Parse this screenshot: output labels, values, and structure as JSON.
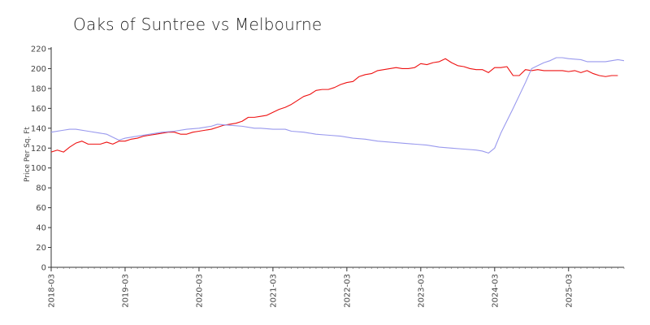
{
  "chart_data": {
    "type": "line",
    "title": "Oaks of Suntree vs Melbourne",
    "xlabel": "",
    "ylabel": "Price Per Sq. Ft",
    "ylim": [
      0,
      220
    ],
    "yticks": [
      0,
      20,
      40,
      60,
      80,
      100,
      120,
      140,
      160,
      180,
      200,
      220
    ],
    "xlim": [
      "2018-03",
      "2025-12"
    ],
    "xticks": [
      "2018-03",
      "2019-03",
      "2020-03",
      "2021-03",
      "2022-03",
      "2023-03",
      "2024-03",
      "2025-03"
    ],
    "grid": false,
    "legend": "none",
    "series": [
      {
        "color": "#ee1111",
        "points": [
          [
            "2018-03",
            116
          ],
          [
            "2018-04",
            118
          ],
          [
            "2018-05",
            116
          ],
          [
            "2018-06",
            121
          ],
          [
            "2018-07",
            125
          ],
          [
            "2018-08",
            127
          ],
          [
            "2018-09",
            124
          ],
          [
            "2018-10",
            124
          ],
          [
            "2018-11",
            124
          ],
          [
            "2018-12",
            126
          ],
          [
            "2019-01",
            124
          ],
          [
            "2019-02",
            127
          ],
          [
            "2019-03",
            127
          ],
          [
            "2019-04",
            129
          ],
          [
            "2019-05",
            130
          ],
          [
            "2019-06",
            132
          ],
          [
            "2019-07",
            133
          ],
          [
            "2019-08",
            134
          ],
          [
            "2019-09",
            135
          ],
          [
            "2019-10",
            136
          ],
          [
            "2019-11",
            136
          ],
          [
            "2019-12",
            134
          ],
          [
            "2020-01",
            134
          ],
          [
            "2020-02",
            136
          ],
          [
            "2020-03",
            137
          ],
          [
            "2020-04",
            138
          ],
          [
            "2020-05",
            139
          ],
          [
            "2020-06",
            141
          ],
          [
            "2020-07",
            143
          ],
          [
            "2020-08",
            144
          ],
          [
            "2020-09",
            145
          ],
          [
            "2020-10",
            147
          ],
          [
            "2020-11",
            151
          ],
          [
            "2020-12",
            151
          ],
          [
            "2021-01",
            152
          ],
          [
            "2021-02",
            153
          ],
          [
            "2021-03",
            156
          ],
          [
            "2021-04",
            159
          ],
          [
            "2021-05",
            161
          ],
          [
            "2021-06",
            164
          ],
          [
            "2021-07",
            168
          ],
          [
            "2021-08",
            172
          ],
          [
            "2021-09",
            174
          ],
          [
            "2021-10",
            178
          ],
          [
            "2021-11",
            179
          ],
          [
            "2021-12",
            179
          ],
          [
            "2022-01",
            181
          ],
          [
            "2022-02",
            184
          ],
          [
            "2022-03",
            186
          ],
          [
            "2022-04",
            187
          ],
          [
            "2022-05",
            192
          ],
          [
            "2022-06",
            194
          ],
          [
            "2022-07",
            195
          ],
          [
            "2022-08",
            198
          ],
          [
            "2022-09",
            199
          ],
          [
            "2022-10",
            200
          ],
          [
            "2022-11",
            201
          ],
          [
            "2022-12",
            200
          ],
          [
            "2023-01",
            200
          ],
          [
            "2023-02",
            201
          ],
          [
            "2023-03",
            205
          ],
          [
            "2023-04",
            204
          ],
          [
            "2023-05",
            206
          ],
          [
            "2023-06",
            207
          ],
          [
            "2023-07",
            210
          ],
          [
            "2023-08",
            206
          ],
          [
            "2023-09",
            203
          ],
          [
            "2023-10",
            202
          ],
          [
            "2023-11",
            200
          ],
          [
            "2023-12",
            199
          ],
          [
            "2024-01",
            199
          ],
          [
            "2024-02",
            196
          ],
          [
            "2024-03",
            201
          ],
          [
            "2024-04",
            201
          ],
          [
            "2024-05",
            202
          ],
          [
            "2024-06",
            193
          ],
          [
            "2024-07",
            193
          ],
          [
            "2024-08",
            199
          ],
          [
            "2024-09",
            198
          ],
          [
            "2024-10",
            199
          ],
          [
            "2024-11",
            198
          ],
          [
            "2024-12",
            198
          ],
          [
            "2025-01",
            198
          ],
          [
            "2025-02",
            198
          ],
          [
            "2025-03",
            197
          ],
          [
            "2025-04",
            198
          ],
          [
            "2025-05",
            196
          ],
          [
            "2025-06",
            198
          ],
          [
            "2025-07",
            195
          ],
          [
            "2025-08",
            193
          ],
          [
            "2025-09",
            192
          ],
          [
            "2025-10",
            193
          ],
          [
            "2025-11",
            193
          ]
        ]
      },
      {
        "color": "#9999ee",
        "points": [
          [
            "2018-03",
            136
          ],
          [
            "2018-05",
            138
          ],
          [
            "2018-06",
            139
          ],
          [
            "2018-07",
            139
          ],
          [
            "2018-09",
            137
          ],
          [
            "2018-11",
            135
          ],
          [
            "2018-12",
            134
          ],
          [
            "2019-01",
            131
          ],
          [
            "2019-02",
            128
          ],
          [
            "2019-03",
            130
          ],
          [
            "2019-05",
            132
          ],
          [
            "2019-07",
            134
          ],
          [
            "2019-09",
            136
          ],
          [
            "2019-11",
            137
          ],
          [
            "2020-01",
            139
          ],
          [
            "2020-03",
            140
          ],
          [
            "2020-05",
            142
          ],
          [
            "2020-06",
            144
          ],
          [
            "2020-08",
            143
          ],
          [
            "2020-10",
            142
          ],
          [
            "2020-12",
            140
          ],
          [
            "2021-01",
            140
          ],
          [
            "2021-03",
            139
          ],
          [
            "2021-05",
            139
          ],
          [
            "2021-06",
            137
          ],
          [
            "2021-08",
            136
          ],
          [
            "2021-10",
            134
          ],
          [
            "2021-12",
            133
          ],
          [
            "2022-02",
            132
          ],
          [
            "2022-04",
            130
          ],
          [
            "2022-06",
            129
          ],
          [
            "2022-08",
            127
          ],
          [
            "2022-10",
            126
          ],
          [
            "2022-12",
            125
          ],
          [
            "2023-02",
            124
          ],
          [
            "2023-04",
            123
          ],
          [
            "2023-06",
            121
          ],
          [
            "2023-08",
            120
          ],
          [
            "2023-10",
            119
          ],
          [
            "2023-12",
            118
          ],
          [
            "2024-01",
            117
          ],
          [
            "2024-02",
            115
          ],
          [
            "2024-03",
            120
          ],
          [
            "2024-04",
            135
          ],
          [
            "2024-06",
            160
          ],
          [
            "2024-08",
            186
          ],
          [
            "2024-09",
            200
          ],
          [
            "2024-10",
            203
          ],
          [
            "2024-11",
            206
          ],
          [
            "2024-12",
            208
          ],
          [
            "2025-01",
            211
          ],
          [
            "2025-02",
            211
          ],
          [
            "2025-03",
            210
          ],
          [
            "2025-05",
            209
          ],
          [
            "2025-06",
            207
          ],
          [
            "2025-08",
            207
          ],
          [
            "2025-09",
            207
          ],
          [
            "2025-10",
            208
          ],
          [
            "2025-11",
            209
          ],
          [
            "2025-12",
            208
          ]
        ]
      }
    ]
  }
}
